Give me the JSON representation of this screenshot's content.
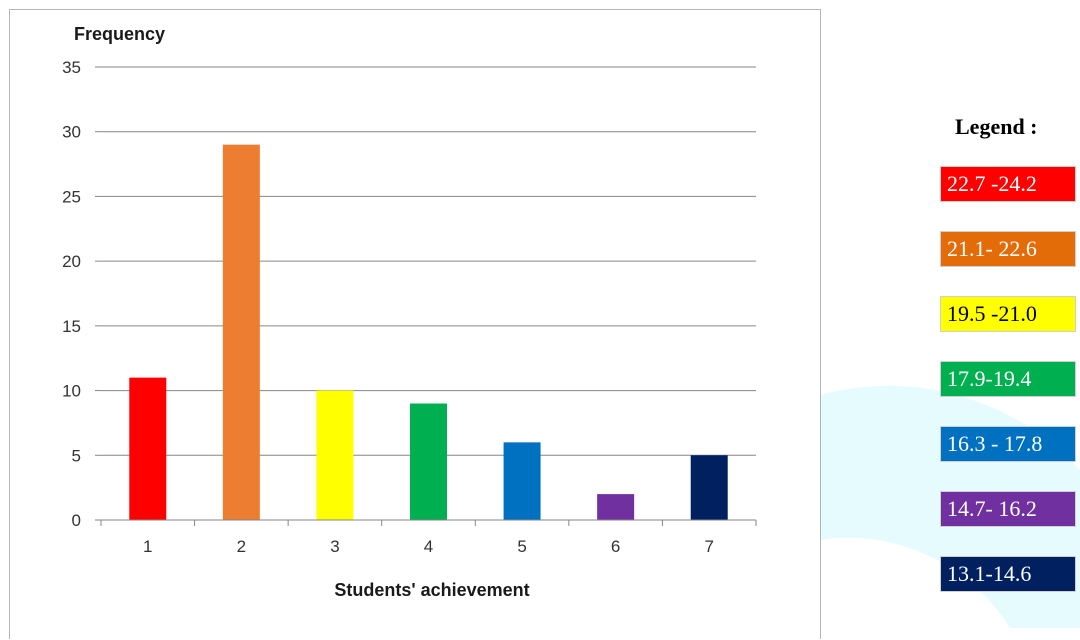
{
  "chart_data": {
    "type": "bar",
    "categories": [
      "1",
      "2",
      "3",
      "4",
      "5",
      "6",
      "7"
    ],
    "values": [
      11,
      29,
      10,
      9,
      6,
      2,
      5
    ],
    "colors": [
      "#ff0000",
      "#ed7d31",
      "#ffff00",
      "#00b050",
      "#0070c0",
      "#7030a0",
      "#002060"
    ],
    "ylabel": "Frequency",
    "xlabel": "Students' achievement",
    "ylim": [
      0,
      35
    ],
    "yticks": [
      0,
      5,
      10,
      15,
      20,
      25,
      30,
      35
    ],
    "grid": true
  },
  "legend": {
    "title": "Legend :",
    "items": [
      {
        "label": "22.7 -24.2",
        "color": "#ff0000",
        "text_color": "#ffffff"
      },
      {
        "label": "21.1- 22.6",
        "color": "#e36c09",
        "text_color": "#ffffff"
      },
      {
        "label": "19.5 -21.0",
        "color": "#ffff00",
        "text_color": "#000000"
      },
      {
        "label": "17.9-19.4",
        "color": "#00b050",
        "text_color": "#ffffff"
      },
      {
        "label": "16.3 - 17.8",
        "color": "#0070c0",
        "text_color": "#ffffff"
      },
      {
        "label": "14.7- 16.2",
        "color": "#7030a0",
        "text_color": "#ffffff"
      },
      {
        "label": "13.1-14.6",
        "color": "#002060",
        "text_color": "#ffffff"
      }
    ]
  }
}
